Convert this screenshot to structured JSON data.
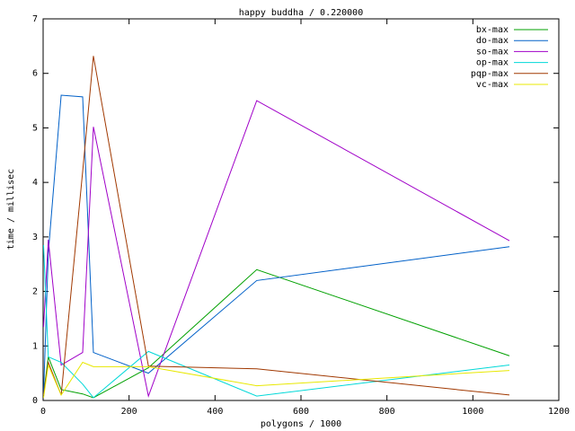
{
  "chart_data": {
    "type": "line",
    "title": "happy buddha / 0.220000",
    "x_label": "polygons / 1000",
    "y_label": "time / millisec",
    "x": [
      1,
      12,
      42,
      92,
      117,
      245,
      497,
      1085
    ],
    "series": [
      {
        "name": "bx-max",
        "color": "#00a000",
        "values": [
          0.1,
          0.8,
          0.2,
          0.12,
          0.05,
          0.6,
          2.4,
          0.82
        ]
      },
      {
        "name": "do-max",
        "color": "#0060c8",
        "values": [
          0.1,
          2.7,
          5.6,
          5.57,
          0.88,
          0.5,
          2.2,
          2.82
        ]
      },
      {
        "name": "so-max",
        "color": "#a000c8",
        "values": [
          1.35,
          2.95,
          0.65,
          0.88,
          5.02,
          0.08,
          5.5,
          2.93
        ]
      },
      {
        "name": "op-max",
        "color": "#00d8d8",
        "values": [
          2.85,
          0.8,
          0.7,
          0.3,
          0.05,
          0.9,
          0.08,
          0.65
        ]
      },
      {
        "name": "pqp-max",
        "color": "#a03800",
        "values": [
          0.1,
          0.7,
          0.1,
          4.2,
          6.32,
          0.63,
          0.58,
          0.1
        ]
      },
      {
        "name": "vc-max",
        "color": "#e8e800",
        "values": [
          0.05,
          0.65,
          0.1,
          0.7,
          0.62,
          0.62,
          0.27,
          0.55
        ]
      }
    ],
    "xlim": [
      0,
      1200
    ],
    "xticks": [
      0,
      200,
      400,
      600,
      800,
      1000,
      1200
    ],
    "ylim": [
      0,
      7
    ],
    "yticks": [
      0,
      1,
      2,
      3,
      4,
      5,
      6,
      7
    ],
    "legend": "top-right"
  }
}
